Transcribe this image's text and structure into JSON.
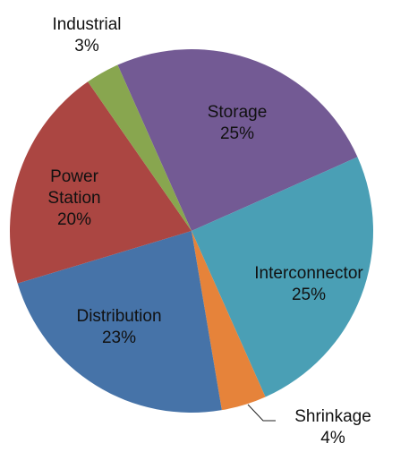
{
  "chart_data": {
    "type": "pie",
    "categories": [
      "Storage",
      "Interconnector",
      "Shrinkage",
      "Distribution",
      "Power Station",
      "Industrial"
    ],
    "values": [
      25,
      25,
      4,
      23,
      20,
      3
    ],
    "value_labels": [
      "25%",
      "25%",
      "4%",
      "23%",
      "20%",
      "3%"
    ],
    "colors": [
      "#7559950",
      "#4a9fb5",
      "#e6833a",
      "#4673a8",
      "#ab4642",
      "#88a64f"
    ]
  }
}
